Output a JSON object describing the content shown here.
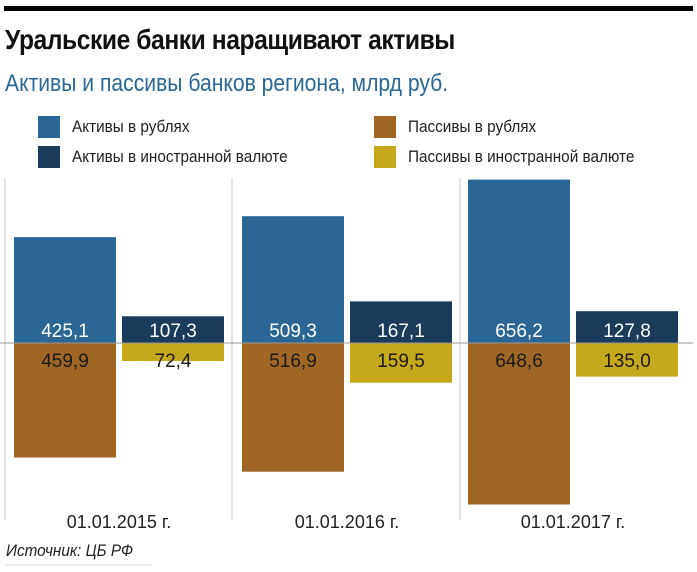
{
  "chart_data": {
    "type": "bar",
    "title": "Уральские банки наращивают активы",
    "subtitle": "Активы и пассивы банков региона, млрд руб.",
    "categories": [
      "01.01.2015 г.",
      "01.01.2016 г.",
      "01.01.2017 г."
    ],
    "series": [
      {
        "name": "Активы в рублях",
        "color": "#2a6796",
        "direction": "up",
        "pair": 0,
        "values": [
          425.1,
          509.3,
          656.2
        ],
        "labels": [
          "425,1",
          "509,3",
          "656,2"
        ],
        "label_color": "#ffffff"
      },
      {
        "name": "Активы в иностранной валюте",
        "color": "#1c3a5a",
        "direction": "up",
        "pair": 1,
        "values": [
          107.3,
          167.1,
          127.8
        ],
        "labels": [
          "107,3",
          "167,1",
          "127,8"
        ],
        "label_color": "#ffffff"
      },
      {
        "name": "Пассивы в рублях",
        "color": "#a16524",
        "direction": "down",
        "pair": 0,
        "values": [
          459.9,
          516.9,
          648.6
        ],
        "labels": [
          "459,9",
          "516,9",
          "648,6"
        ],
        "label_color": "#1a1a1a"
      },
      {
        "name": "Пассивы в иностранной валюте",
        "color": "#c6a91b",
        "direction": "down",
        "pair": 1,
        "values": [
          72.4,
          159.5,
          135.0
        ],
        "labels": [
          "72,4",
          "159,5",
          "135,0"
        ],
        "label_color": "#1a1a1a"
      }
    ],
    "legend_position": "top",
    "source": "Источник: ЦБ РФ"
  }
}
